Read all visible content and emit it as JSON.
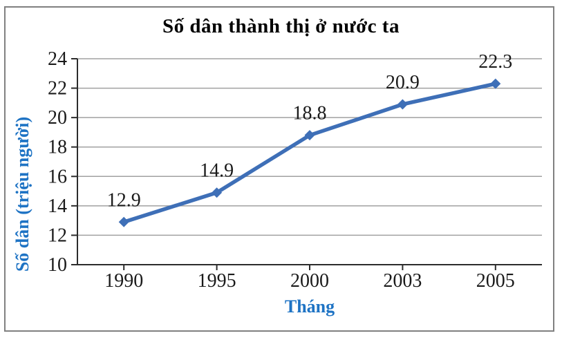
{
  "colors": {
    "line": "#3E6FB7",
    "marker": "#3E6FB7",
    "grid": "#A0A0A0",
    "axis": "#2B2B2B",
    "text": "#1A1A1A",
    "axis_title": "#1E73C4",
    "frame_border": "#808080",
    "background": "#FFFFFF"
  },
  "chart_data": {
    "type": "line",
    "title": "Số dân thành thị ở nước ta",
    "xlabel": "Tháng",
    "ylabel": "Số dân (triệu người)",
    "categories": [
      "1990",
      "1995",
      "2000",
      "2003",
      "2005"
    ],
    "values": [
      12.9,
      14.9,
      18.8,
      20.9,
      22.3
    ],
    "data_labels": [
      "12.9",
      "14.9",
      "18.8",
      "20.9",
      "22.3"
    ],
    "ylim": [
      10,
      24
    ],
    "ytick_step": 2,
    "yticks": [
      "10",
      "12",
      "14",
      "16",
      "18",
      "20",
      "22",
      "24"
    ],
    "grid": "horizontal",
    "legend": "none",
    "marker_shape": "diamond"
  }
}
